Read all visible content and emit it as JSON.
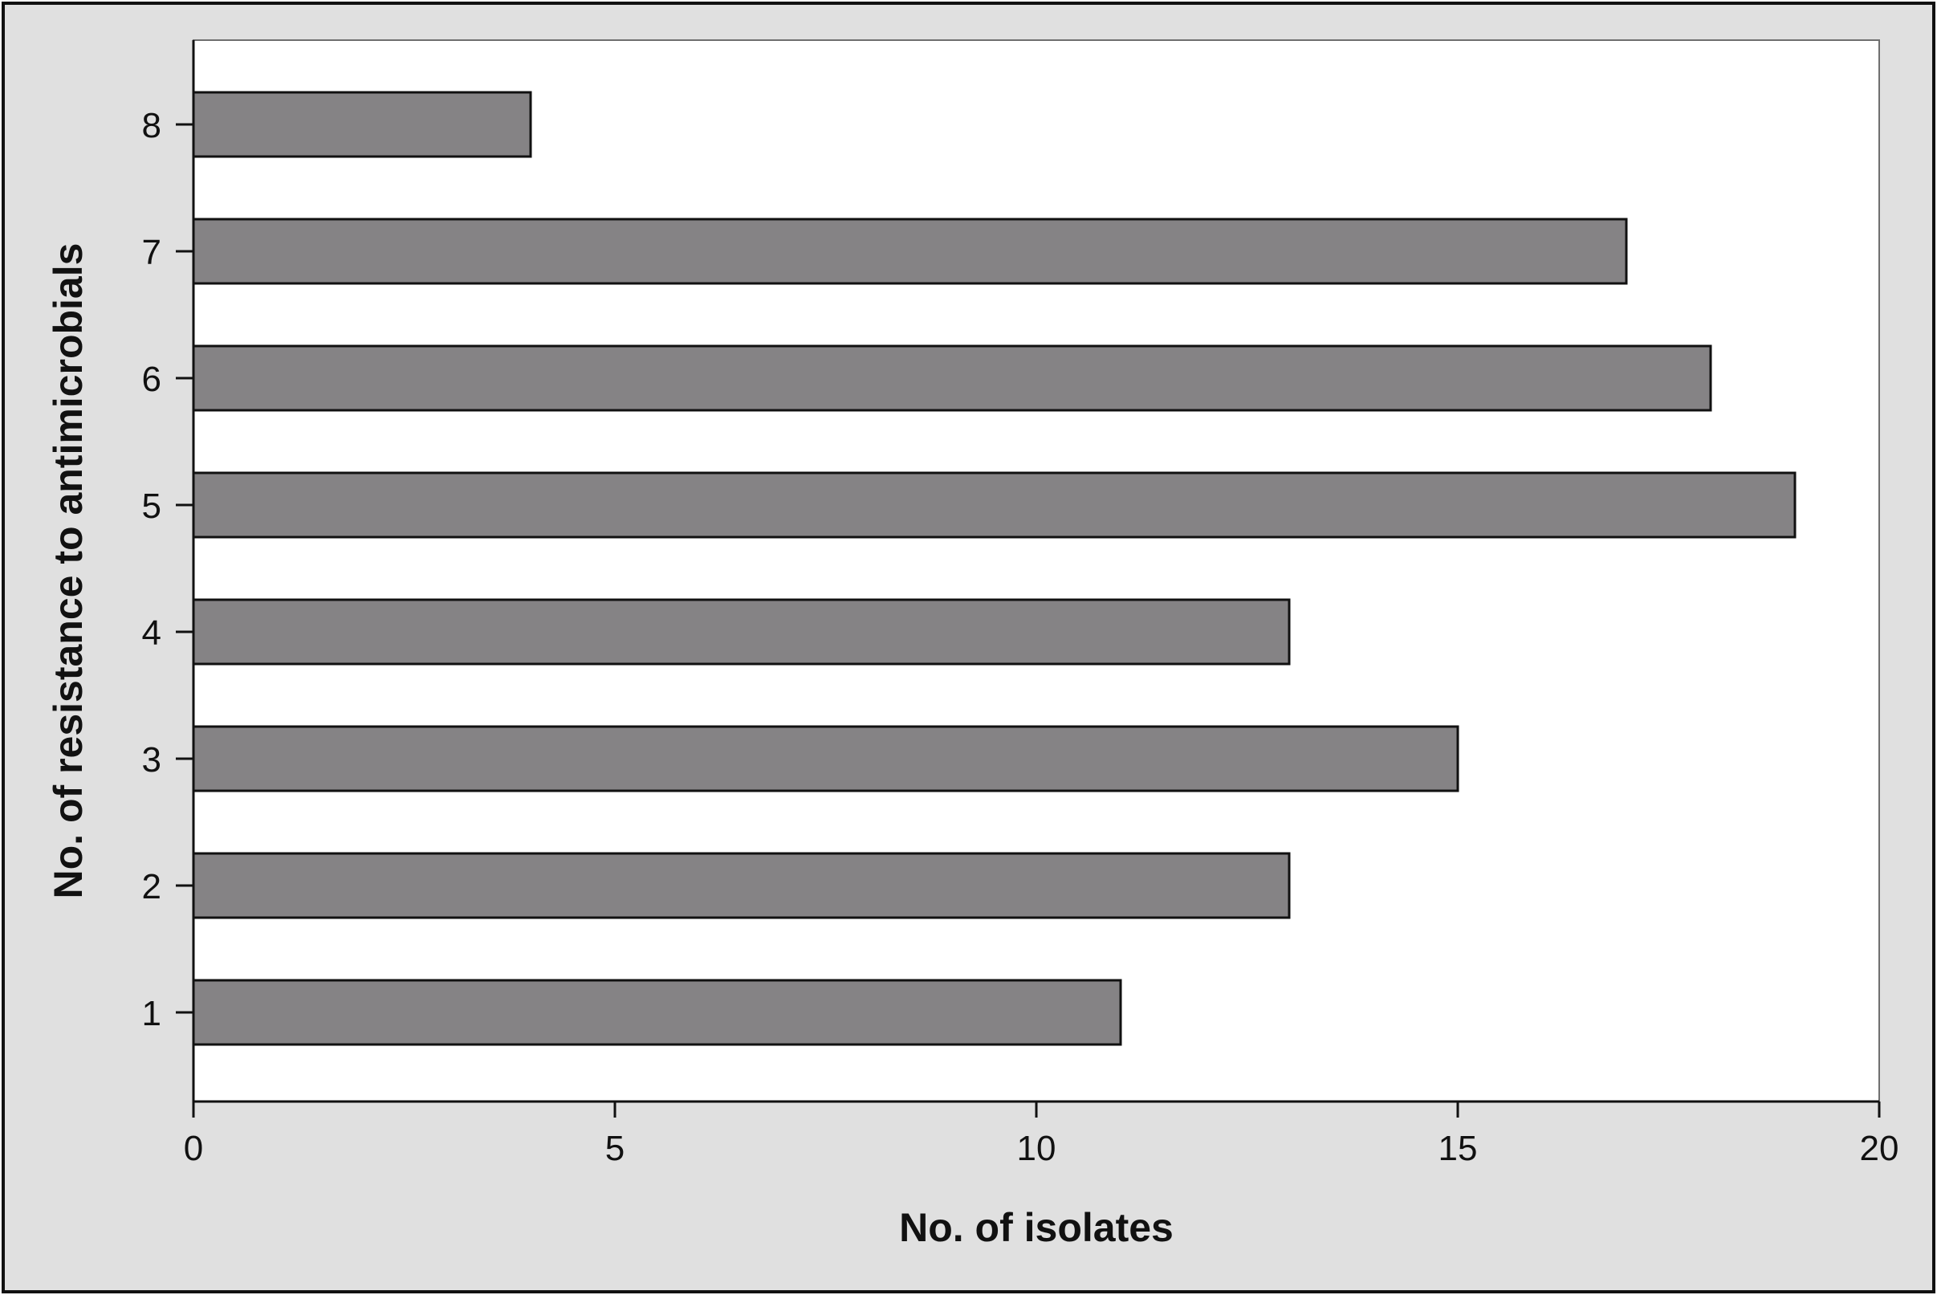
{
  "chart_data": {
    "type": "bar",
    "orientation": "horizontal",
    "categories": [
      "1",
      "2",
      "3",
      "4",
      "5",
      "6",
      "7",
      "8"
    ],
    "values": [
      11,
      13,
      15,
      13,
      19,
      18,
      17,
      4
    ],
    "title": "",
    "xlabel": "No. of isolates",
    "ylabel": "No. of resistance to antimicrobials",
    "xlim": [
      0,
      20
    ],
    "xticks": [
      "0",
      "5",
      "10",
      "15",
      "20"
    ],
    "grid": false,
    "legend": "none",
    "colors": {
      "bar_fill": "#858385",
      "bar_stroke": "#111111",
      "frame_background": "#e0e0e0",
      "plot_background": "#ffffff",
      "axis": "#111111"
    }
  }
}
